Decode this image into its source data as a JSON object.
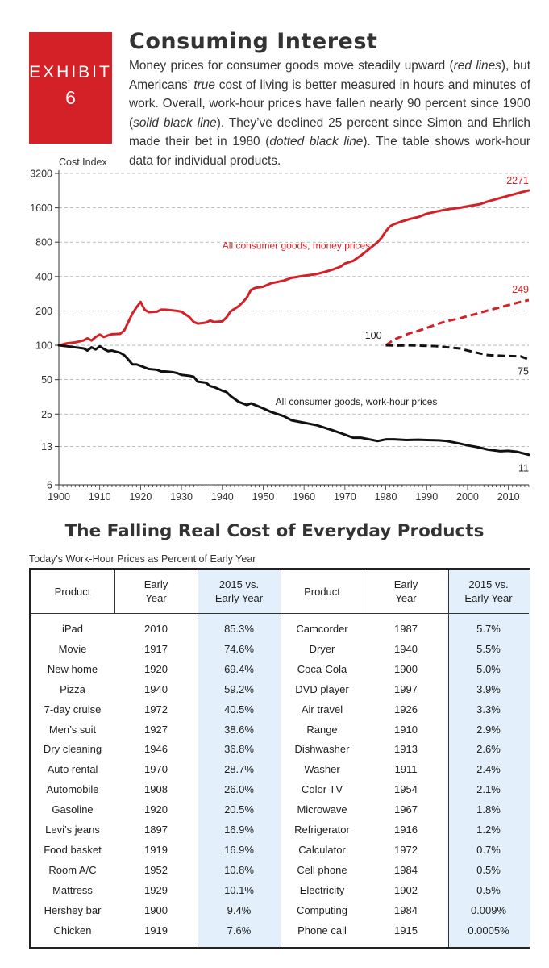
{
  "exhibit": {
    "label": "EXHIBIT",
    "number": "6"
  },
  "header": {
    "title": "Consuming Interest",
    "description": [
      {
        "t": "Money prices for consumer goods move steadily upward ("
      },
      {
        "t": "red lines",
        "i": true
      },
      {
        "t": "), but Americans’ "
      },
      {
        "t": "true",
        "i": true
      },
      {
        "t": " cost of living is better measured in hours and minutes of work. Overall, work-hour prices have fallen nearly 90 percent since 1900 ("
      },
      {
        "t": "solid black line",
        "i": true
      },
      {
        "t": "). They’ve declined 25 percent since Simon and Ehrlich made their bet in 1980 ("
      },
      {
        "t": "dotted black line",
        "i": true
      },
      {
        "t": "). The table shows work-hour data for individual products."
      }
    ]
  },
  "chart_data": {
    "type": "line",
    "ylabel": "Cost Index",
    "yscale": "log2",
    "ylim": [
      6,
      3200
    ],
    "xlim": [
      1900,
      2015
    ],
    "yticks": [
      6,
      13,
      25,
      50,
      100,
      200,
      400,
      800,
      1600,
      3200
    ],
    "xticks": [
      1900,
      1910,
      1920,
      1930,
      1940,
      1950,
      1960,
      1970,
      1980,
      1990,
      2000,
      2010
    ],
    "grid": "horizontal dashed",
    "colors": {
      "money": "#d42128",
      "work": "#111111"
    },
    "series": [
      {
        "name": "All consumer goods, money prices",
        "style": "solid",
        "color": "#d42128",
        "x": [
          1900,
          1902,
          1904,
          1906,
          1907,
          1908,
          1909,
          1910,
          1911,
          1912,
          1913,
          1915,
          1916,
          1917,
          1918,
          1919,
          1920,
          1921,
          1922,
          1924,
          1925,
          1926,
          1928,
          1929,
          1930,
          1932,
          1933,
          1934,
          1936,
          1937,
          1938,
          1940,
          1941,
          1942,
          1944,
          1945,
          1946,
          1947,
          1948,
          1950,
          1952,
          1955,
          1957,
          1960,
          1963,
          1965,
          1967,
          1969,
          1970,
          1972,
          1974,
          1976,
          1978,
          1979,
          1980,
          1981,
          1982,
          1984,
          1986,
          1988,
          1990,
          1993,
          1995,
          1998,
          2000,
          2003,
          2005,
          2008,
          2010,
          2013,
          2015
        ],
        "y": [
          100,
          104,
          106,
          110,
          115,
          110,
          118,
          124,
          118,
          122,
          125,
          126,
          135,
          160,
          190,
          215,
          240,
          205,
          195,
          197,
          205,
          205,
          202,
          200,
          197,
          176,
          160,
          155,
          158,
          165,
          160,
          162,
          175,
          198,
          220,
          238,
          262,
          305,
          318,
          326,
          350,
          368,
          390,
          406,
          420,
          438,
          460,
          490,
          520,
          548,
          615,
          700,
          800,
          880,
          995,
          1100,
          1150,
          1220,
          1280,
          1330,
          1420,
          1500,
          1550,
          1600,
          1650,
          1720,
          1820,
          1950,
          2040,
          2180,
          2271
        ]
      },
      {
        "name": "All consumer goods, work-hour prices",
        "style": "solid",
        "color": "#111111",
        "x": [
          1900,
          1902,
          1904,
          1906,
          1907,
          1908,
          1909,
          1910,
          1911,
          1912,
          1913,
          1915,
          1916,
          1917,
          1918,
          1919,
          1920,
          1921,
          1922,
          1924,
          1925,
          1926,
          1928,
          1929,
          1930,
          1932,
          1933,
          1934,
          1936,
          1937,
          1938,
          1940,
          1941,
          1942,
          1944,
          1945,
          1946,
          1947,
          1948,
          1950,
          1952,
          1955,
          1957,
          1960,
          1963,
          1965,
          1967,
          1969,
          1970,
          1972,
          1974,
          1976,
          1978,
          1980,
          1982,
          1985,
          1988,
          1990,
          1993,
          1995,
          1998,
          2000,
          2003,
          2005,
          2008,
          2010,
          2012,
          2015
        ],
        "y": [
          100,
          98,
          96,
          94,
          90,
          96,
          92,
          98,
          93,
          89,
          90,
          86,
          82,
          75,
          68,
          68,
          66,
          64,
          62,
          61,
          59,
          59,
          58,
          57,
          55,
          54,
          53,
          48,
          47,
          44,
          43,
          40,
          39,
          36,
          32,
          31,
          30,
          31,
          30,
          28,
          26,
          24,
          22,
          21,
          20,
          19,
          18,
          17,
          16.5,
          15.5,
          15.5,
          15,
          14.5,
          15,
          15,
          14.8,
          14.9,
          14.8,
          14.7,
          14.5,
          13.8,
          13.3,
          12.7,
          12.2,
          11.8,
          11.9,
          11.7,
          11
        ]
      },
      {
        "name": "Money prices since 1980",
        "style": "dashed",
        "color": "#d42128",
        "x": [
          1980,
          1982,
          1984,
          1986,
          1988,
          1990,
          1993,
          1995,
          1998,
          2000,
          2003,
          2005,
          2008,
          2010,
          2013,
          2015
        ],
        "y": [
          100,
          112,
          120,
          128,
          134,
          142,
          155,
          163,
          172,
          180,
          192,
          202,
          215,
          225,
          240,
          249
        ]
      },
      {
        "name": "Work-hour prices since 1980",
        "style": "dashed",
        "color": "#111111",
        "x": [
          1980,
          1983,
          1986,
          1989,
          1992,
          1995,
          1998,
          2000,
          2003,
          2005,
          2008,
          2010,
          2013,
          2015
        ],
        "y": [
          100,
          99.5,
          100,
          99,
          98.5,
          96,
          94,
          90,
          85,
          82,
          81,
          80.5,
          80,
          75
        ]
      }
    ],
    "annotations": [
      {
        "text": "2271",
        "color": "#d42128",
        "at": [
          2015,
          2271
        ]
      },
      {
        "text": "249",
        "color": "#d42128",
        "at": [
          2015,
          249
        ]
      },
      {
        "text": "100",
        "color": "#222222",
        "at": [
          1980,
          100
        ]
      },
      {
        "text": "75",
        "color": "#222222",
        "at": [
          2015,
          75
        ]
      },
      {
        "text": "11",
        "color": "#222222",
        "at": [
          2015,
          11
        ]
      },
      {
        "text": "All consumer goods, money prices",
        "color": "#d42128",
        "at": [
          1940,
          700
        ]
      },
      {
        "text": "All consumer goods, work-hour prices",
        "color": "#222222",
        "at": [
          1953,
          30
        ]
      }
    ]
  },
  "table": {
    "title": "The Falling Real Cost of Everyday Products",
    "subtitle": "Today's Work-Hour Prices as Percent of Early Year",
    "headers": [
      "Product",
      "Early\nYear",
      "2015 vs.\nEarly Year",
      "Product",
      "Early\nYear",
      "2015 vs.\nEarly Year"
    ],
    "rows": [
      [
        "iPad",
        "2010",
        "85.3%",
        "Camcorder",
        "1987",
        "5.7%"
      ],
      [
        "Movie",
        "1917",
        "74.6%",
        "Dryer",
        "1940",
        "5.5%"
      ],
      [
        "New home",
        "1920",
        "69.4%",
        "Coca-Cola",
        "1900",
        "5.0%"
      ],
      [
        "Pizza",
        "1940",
        "59.2%",
        "DVD player",
        "1997",
        "3.9%"
      ],
      [
        "7-day cruise",
        "1972",
        "40.5%",
        "Air travel",
        "1926",
        "3.3%"
      ],
      [
        "Men’s suit",
        "1927",
        "38.6%",
        "Range",
        "1910",
        "2.9%"
      ],
      [
        "Dry cleaning",
        "1946",
        "36.8%",
        "Dishwasher",
        "1913",
        "2.6%"
      ],
      [
        "Auto rental",
        "1970",
        "28.7%",
        "Washer",
        "1911",
        "2.4%"
      ],
      [
        "Automobile",
        "1908",
        "26.0%",
        "Color TV",
        "1954",
        "2.1%"
      ],
      [
        "Gasoline",
        "1920",
        "20.5%",
        "Microwave",
        "1967",
        "1.8%"
      ],
      [
        "Levi’s jeans",
        "1897",
        "16.9%",
        "Refrigerator",
        "1916",
        "1.2%"
      ],
      [
        "Food basket",
        "1919",
        "16.9%",
        "Calculator",
        "1972",
        "0.7%"
      ],
      [
        "Room A/C",
        "1952",
        "10.8%",
        "Cell phone",
        "1984",
        "0.5%"
      ],
      [
        "Mattress",
        "1929",
        "10.1%",
        "Electricity",
        "1902",
        "0.5%"
      ],
      [
        "Hershey bar",
        "1900",
        "9.4%",
        "Computing",
        "1984",
        "0.009%"
      ],
      [
        "Chicken",
        "1919",
        "7.6%",
        "Phone call",
        "1915",
        "0.0005%"
      ]
    ],
    "highlight_color": "#e3f0fb"
  }
}
